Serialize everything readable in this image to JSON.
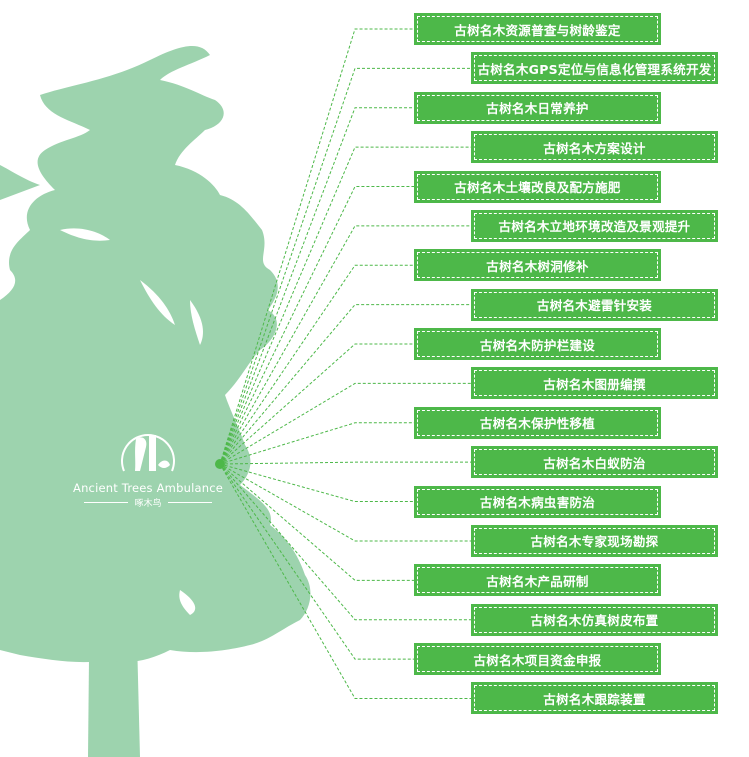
{
  "colors": {
    "tree": "#9dd3ae",
    "accent": "#4db849"
  },
  "brand": {
    "name_en": "Ancient Trees Ambulance",
    "name_cn": "啄木鸟"
  },
  "services": [
    "古树名木资源普查与树龄鉴定",
    "古树名木GPS定位与信息化管理系统开发",
    "古树名木日常养护",
    "古树名木方案设计",
    "古树名木土壤改良及配方施肥",
    "古树名木立地环境改造及景观提升",
    "古树名木树洞修补",
    "古树名木避雷针安装",
    "古树名木防护栏建设",
    "古树名木图册编撰",
    "古树名木保护性移植",
    "古树名木白蚁防治",
    "古树名木病虫害防治",
    "古树名木专家现场勘探",
    "古树名木产品研制",
    "古树名木仿真树皮布置",
    "古树名木项目资金申报",
    "古树名木跟踪装置"
  ]
}
